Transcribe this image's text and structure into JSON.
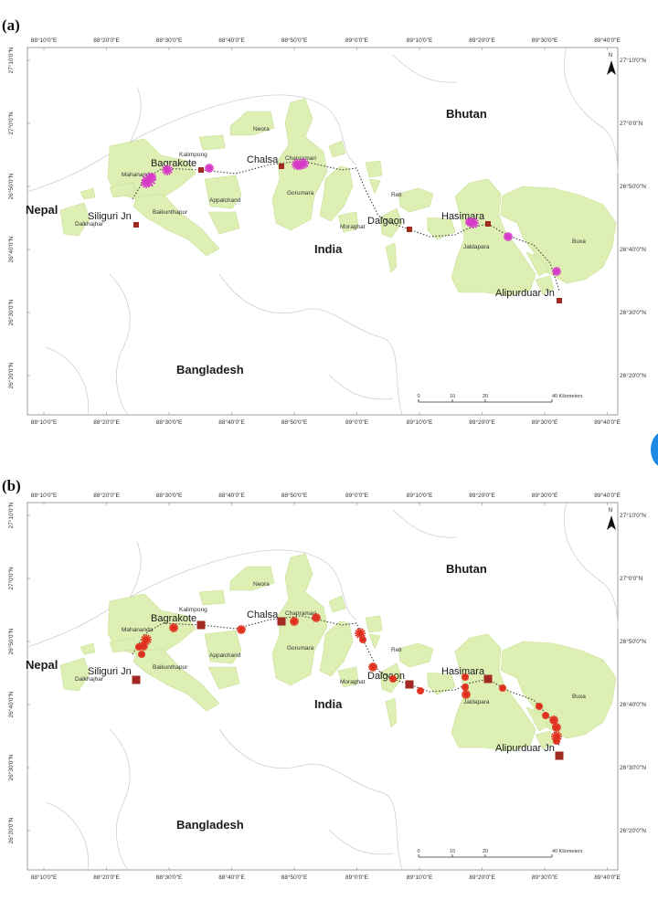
{
  "panels": [
    {
      "label": "(a)",
      "marker_color": "#d63cc8"
    },
    {
      "label": "(b)",
      "marker_color": "#e0301e"
    }
  ],
  "axes": {
    "lon_ticks": [
      "88°10'0\"E",
      "88°20'0\"E",
      "88°30'0\"E",
      "88°40'0\"E",
      "88°50'0\"E",
      "89°0'0\"E",
      "89°10'0\"E",
      "89°20'0\"E",
      "89°30'0\"E",
      "89°40'0\"E"
    ],
    "lat_ticks": [
      "27°10'0\"N",
      "27°0'0\"N",
      "26°50'0\"N",
      "26°40'0\"N",
      "26°30'0\"N",
      "26°20'0\"N"
    ]
  },
  "countries": {
    "nepal": "Nepal",
    "bhutan": "Bhutan",
    "india": "India",
    "bangladesh": "Bangladesh"
  },
  "stations": {
    "siliguri": "Siliguri Jn",
    "bagrakote": "Bagrakote",
    "chalsa": "Chalsa",
    "dalgaon": "Dalgaon",
    "hasimara": "Hasimara",
    "alipurduar": "Alipurduar Jn"
  },
  "forests": {
    "dalkhajhar": "Dalkhajhar",
    "mahananda": "Mahananda",
    "baikunthapur": "Baikunthapur",
    "kalimpong": "Kalimpong",
    "appalchand": "Appalchand",
    "neora": "Neora",
    "chapramari": "Chapramari",
    "gorumara": "Gorumara",
    "reti": "Reti",
    "moraghat": "Moraghat",
    "jaldapara": "Jaldapara",
    "buxa": "Buxa"
  },
  "scale_bar": {
    "ticks": [
      "0",
      "10",
      "20",
      "40 Kilometers"
    ]
  },
  "north": "N",
  "colors": {
    "forest": "#deefb4",
    "forest_stroke": "#c9df95",
    "station": "#a12a22",
    "track": "#444444",
    "boundary": "#cfcfcf"
  }
}
